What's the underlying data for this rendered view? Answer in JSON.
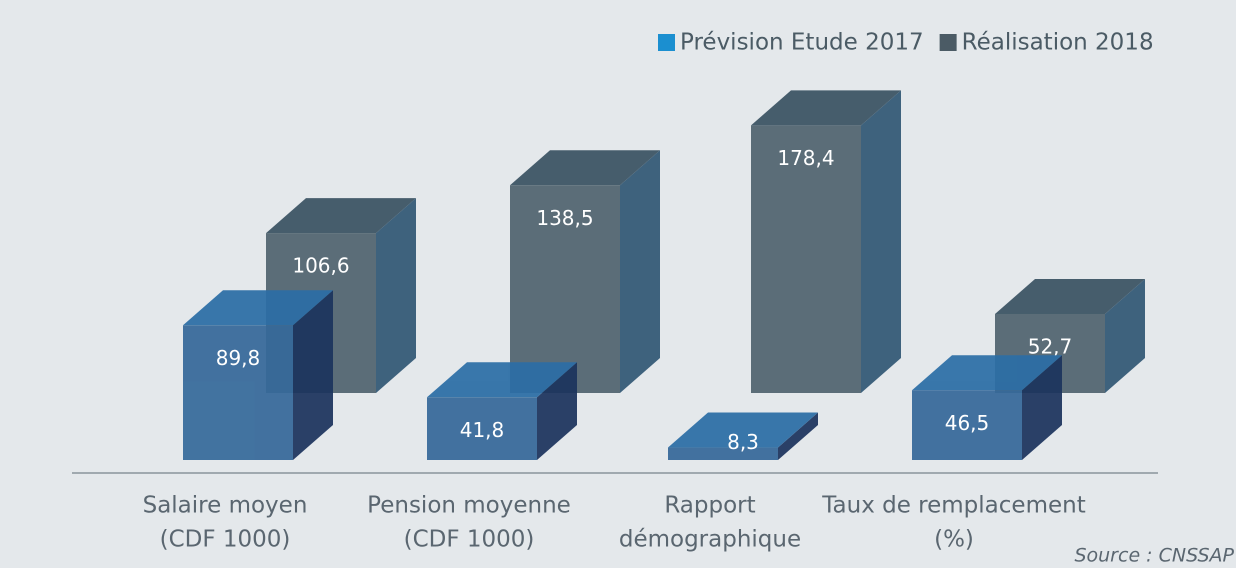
{
  "chart_data": {
    "type": "bar3d",
    "categories": [
      [
        "Salaire moyen",
        "(CDF 1000)"
      ],
      [
        "Pension moyenne",
        "(CDF 1000)"
      ],
      [
        "Rapport",
        "démographique"
      ],
      [
        "Taux de remplacement",
        "(%)"
      ]
    ],
    "series": [
      {
        "name": "Prévision Etude 2017",
        "color": "#1b8fd0",
        "values": [
          89.8,
          41.8,
          8.3,
          46.5
        ],
        "value_labels": [
          "89,8",
          "41,8",
          "8,3",
          "46,5"
        ]
      },
      {
        "name": "Réalisation 2018",
        "color": "#4b5b65",
        "values": [
          106.6,
          138.5,
          178.4,
          52.7
        ],
        "value_labels": [
          "106,6",
          "138,5",
          "178,4",
          "52,7"
        ]
      }
    ],
    "legend": "top-right",
    "source": "Source : CNSSAP"
  }
}
